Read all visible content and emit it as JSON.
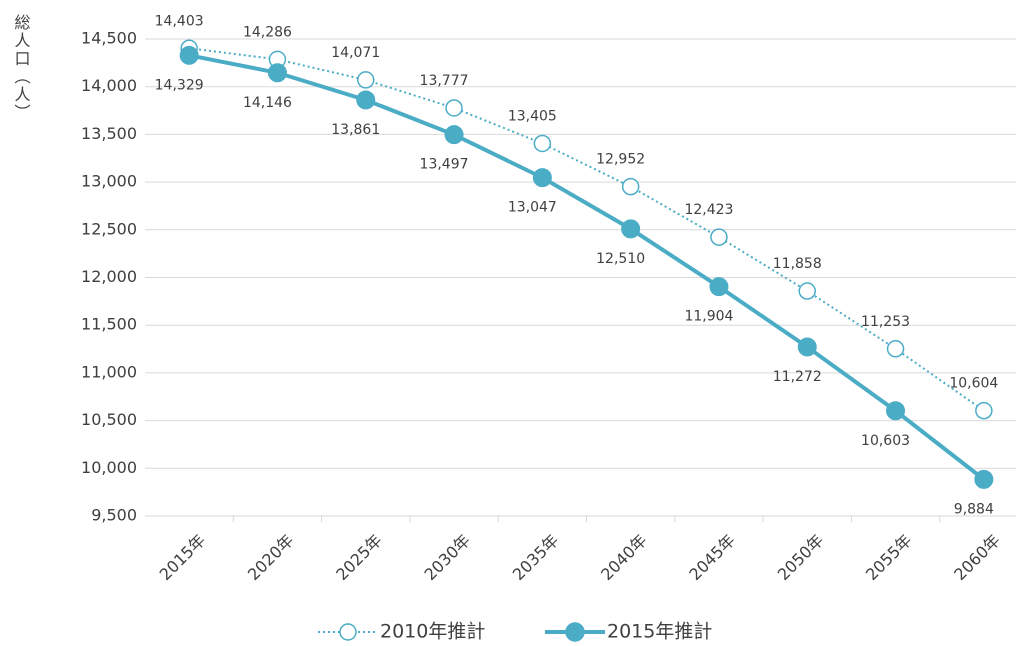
{
  "chart_data": {
    "type": "line",
    "y_label": "総人口（人）",
    "categories": [
      "2015年",
      "2020年",
      "2025年",
      "2030年",
      "2035年",
      "2040年",
      "2045年",
      "2050年",
      "2055年",
      "2060年"
    ],
    "series": [
      {
        "name": "2010年推計",
        "color": "#4bacc6",
        "style": "dotted",
        "marker": "open",
        "values": [
          14403,
          14286,
          14071,
          13777,
          13405,
          12952,
          12423,
          11858,
          11253,
          10604
        ],
        "value_labels": [
          "14,403",
          "14,286",
          "14,071",
          "13,777",
          "13,405",
          "12,952",
          "12,423",
          "11,858",
          "11,253",
          "10,604"
        ]
      },
      {
        "name": "2015年推計",
        "color": "#4bacc6",
        "style": "solid",
        "marker": "filled",
        "values": [
          14329,
          14146,
          13861,
          13497,
          13047,
          12510,
          11904,
          11272,
          10603,
          9884
        ],
        "value_labels": [
          "14,329",
          "14,146",
          "13,861",
          "13,497",
          "13,047",
          "12,510",
          "11,904",
          "11,272",
          "10,603",
          "9,884"
        ]
      }
    ],
    "ylim": [
      9500,
      14500
    ],
    "yticks": [
      {
        "value": 9500,
        "label": "9,500"
      },
      {
        "value": 10000,
        "label": "10,000"
      },
      {
        "value": 10500,
        "label": "10,500"
      },
      {
        "value": 11000,
        "label": "11,000"
      },
      {
        "value": 11500,
        "label": "11,500"
      },
      {
        "value": 12000,
        "label": "12,000"
      },
      {
        "value": 12500,
        "label": "12,500"
      },
      {
        "value": 13000,
        "label": "13,000"
      },
      {
        "value": 13500,
        "label": "13,500"
      },
      {
        "value": 14000,
        "label": "14,000"
      },
      {
        "value": 14500,
        "label": "14,500"
      }
    ],
    "grid": true
  }
}
